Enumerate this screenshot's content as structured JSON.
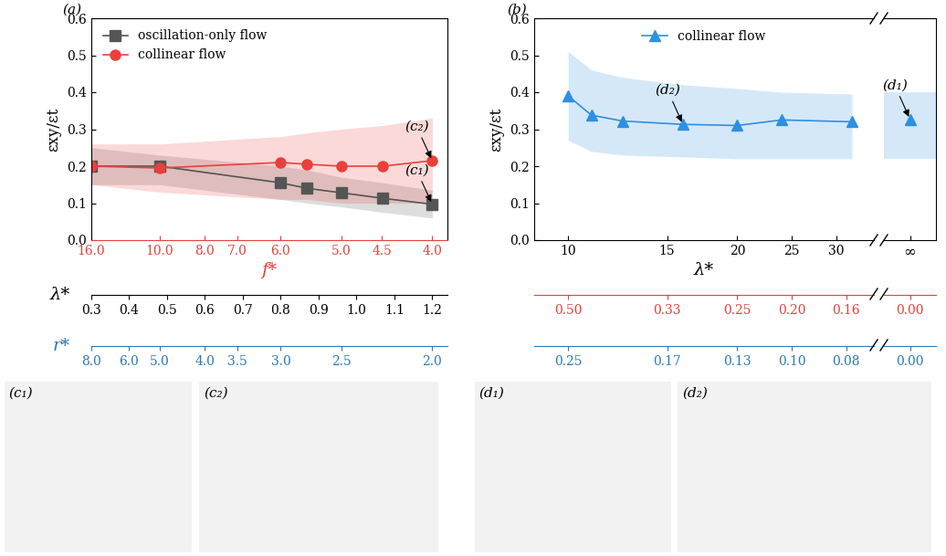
{
  "chart_data": [
    {
      "type": "line",
      "panel": "(a)",
      "ylabel": "εxy/εt",
      "ylim": [
        0.0,
        0.6
      ],
      "yticks": [
        0.0,
        0.1,
        0.2,
        0.3,
        0.4,
        0.5,
        0.6
      ],
      "xlim": [
        0.3,
        1.24
      ],
      "x_axes": [
        {
          "title": "f*",
          "color": "#e8413c",
          "ticks": [
            {
              "value": 0.3,
              "label": "16.0"
            },
            {
              "value": 0.48,
              "label": "10.0"
            },
            {
              "value": 0.6,
              "label": "8.0"
            },
            {
              "value": 0.686,
              "label": "7.0"
            },
            {
              "value": 0.8,
              "label": "6.0"
            },
            {
              "value": 0.96,
              "label": "5.0"
            },
            {
              "value": 1.067,
              "label": "4.5"
            },
            {
              "value": 1.2,
              "label": "4.0"
            }
          ]
        },
        {
          "title": "λ*",
          "color": "#000000",
          "ticks": [
            0.3,
            0.4,
            0.5,
            0.6,
            0.7,
            0.8,
            0.9,
            1.0,
            1.1,
            1.2
          ]
        },
        {
          "title": "r*",
          "color": "#2a7ab9",
          "ticks": [
            {
              "value": 0.3,
              "label": "8.0"
            },
            {
              "value": 0.4,
              "label": "6.0"
            },
            {
              "value": 0.48,
              "label": "5.0"
            },
            {
              "value": 0.6,
              "label": "4.0"
            },
            {
              "value": 0.686,
              "label": "3.5"
            },
            {
              "value": 0.8,
              "label": "3.0"
            },
            {
              "value": 0.96,
              "label": "2.5"
            },
            {
              "value": 1.2,
              "label": "2.0"
            }
          ]
        }
      ],
      "x": [
        0.3,
        0.48,
        0.8,
        0.87,
        0.96,
        1.07,
        1.2
      ],
      "series": [
        {
          "name": "oscillation-only flow",
          "color": "#555555",
          "marker": "square",
          "values": [
            0.2,
            0.2,
            0.155,
            0.14,
            0.128,
            0.113,
            0.097
          ],
          "band_lower": [
            0.15,
            0.15,
            0.11,
            0.1,
            0.09,
            0.075,
            0.06
          ],
          "band_upper": [
            0.25,
            0.23,
            0.2,
            0.19,
            0.17,
            0.155,
            0.135
          ]
        },
        {
          "name": "collinear flow",
          "color": "#e8413c",
          "marker": "circle",
          "values": [
            0.2,
            0.195,
            0.21,
            0.205,
            0.2,
            0.2,
            0.215
          ],
          "band_lower": [
            0.15,
            0.13,
            0.11,
            0.11,
            0.1,
            0.1,
            0.1
          ],
          "band_upper": [
            0.26,
            0.26,
            0.28,
            0.29,
            0.3,
            0.31,
            0.33
          ]
        }
      ],
      "legend": "upper left",
      "annotations": [
        {
          "text": "(c₁)",
          "x": 1.2,
          "y": 0.097
        },
        {
          "text": "(c₂)",
          "x": 1.2,
          "y": 0.215
        }
      ]
    },
    {
      "type": "line",
      "panel": "(b)",
      "ylabel": "εxy/εt",
      "ylim": [
        0.0,
        0.6
      ],
      "yticks": [
        0.0,
        0.1,
        0.2,
        0.3,
        0.4,
        0.5,
        0.6
      ],
      "log": "x",
      "xlim": [
        8.7,
        35
      ],
      "x_axes": [
        {
          "title": "λ*",
          "color": "#000000",
          "ticks": [
            10,
            15,
            20,
            25,
            30
          ]
        },
        {
          "color": "#e8413c",
          "ticks": [
            {
              "value": 10,
              "label": "0.50"
            },
            {
              "value": 15,
              "label": "0.33"
            },
            {
              "value": 20,
              "label": "0.25"
            },
            {
              "value": 25,
              "label": "0.20"
            },
            {
              "value": 31.25,
              "label": "0.16"
            }
          ]
        },
        {
          "color": "#2a7ab9",
          "ticks": [
            {
              "value": 10,
              "label": "0.25"
            },
            {
              "value": 15,
              "label": "0.17"
            },
            {
              "value": 20,
              "label": "0.13"
            },
            {
              "value": 25,
              "label": "0.10"
            },
            {
              "value": 31.25,
              "label": "0.08"
            }
          ]
        }
      ],
      "x": [
        10,
        11,
        12.5,
        16,
        20,
        24,
        32
      ],
      "series": [
        {
          "name": "collinear flow",
          "color": "#2f8fe0",
          "marker": "triangle",
          "values": [
            0.39,
            0.338,
            0.322,
            0.313,
            0.31,
            0.325,
            0.32
          ],
          "band_lower": [
            0.27,
            0.24,
            0.23,
            0.225,
            0.22,
            0.22,
            0.22
          ],
          "band_upper": [
            0.51,
            0.46,
            0.44,
            0.42,
            0.41,
            0.4,
            0.395
          ]
        }
      ],
      "break": {
        "labels": [
          "∞",
          "0.00",
          "0.00"
        ],
        "values": [
          0.327
        ],
        "band_lower": [
          0.22
        ],
        "band_upper": [
          0.4
        ],
        "annotation": "(d₁)"
      },
      "legend": "upper center",
      "annotations": [
        {
          "text": "(d₂)",
          "x": 16,
          "y": 0.313
        }
      ]
    }
  ],
  "image_panels": [
    "(c₁)",
    "(c₂)",
    "(d₁)",
    "(d₂)"
  ]
}
